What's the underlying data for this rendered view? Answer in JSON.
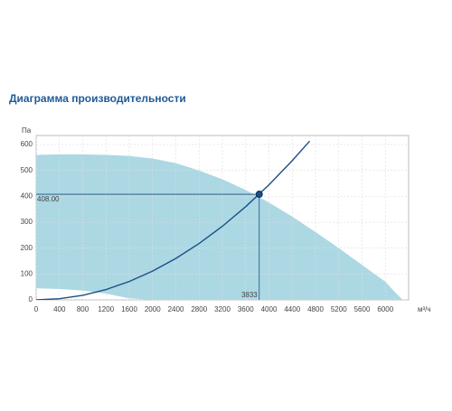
{
  "chart_data": {
    "type": "fan-performance",
    "title": "Диаграмма производительности",
    "y_label": "Па",
    "x_label": "м³/ч",
    "xlim": [
      0,
      6400
    ],
    "ylim": [
      0,
      635
    ],
    "xticks": [
      0,
      400,
      800,
      1200,
      1600,
      2000,
      2400,
      2800,
      3200,
      3600,
      4000,
      4400,
      4800,
      5200,
      5600,
      6000
    ],
    "yticks": [
      0,
      100,
      200,
      300,
      400,
      500,
      600
    ],
    "grid": true,
    "region": {
      "color": "#acd8e4",
      "x": [
        0,
        400,
        800,
        1200,
        1600,
        2000,
        2400,
        2800,
        3200,
        3600,
        4000,
        4400,
        4800,
        5200,
        5600,
        6000,
        6200,
        6300
      ],
      "upper": [
        560,
        562,
        562,
        560,
        556,
        546,
        528,
        500,
        466,
        425,
        376,
        322,
        262,
        200,
        135,
        70,
        22,
        0
      ],
      "lower": [
        45,
        42,
        36,
        24,
        6,
        0,
        0,
        0,
        0,
        0,
        0,
        0,
        0,
        0,
        0,
        0,
        0,
        0
      ]
    },
    "curve": {
      "color": "#1c4f86",
      "x": [
        0,
        400,
        800,
        1200,
        1600,
        2000,
        2400,
        2800,
        3200,
        3600,
        4000,
        4400,
        4700
      ],
      "values": [
        0,
        4.4,
        17.8,
        40,
        71.1,
        111.1,
        160,
        217.8,
        284.4,
        360,
        444.4,
        537.8,
        613.5
      ]
    },
    "point": {
      "x": 3833,
      "y": 408,
      "y_label": "408.00",
      "color": "#1c4f86"
    }
  }
}
